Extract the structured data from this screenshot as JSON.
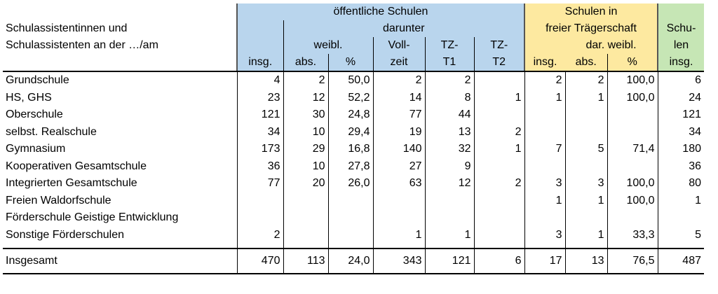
{
  "header": {
    "row_label": [
      "Schulassistentinnen und",
      "Schulassistenten an der …/am"
    ],
    "public": {
      "title": "öffentliche Schulen",
      "sub": "darunter",
      "female": "weibl.",
      "fulltime": "Voll-",
      "tz1": "TZ-",
      "tz2": "TZ-"
    },
    "free": {
      "title": "Schulen in",
      "title2": "freier Trägerschaft",
      "female": "dar. weibl."
    },
    "total": {
      "line1": "Schu-",
      "line2": "len"
    },
    "columns": [
      "insg.",
      "abs.",
      "%",
      "zeit",
      "T1",
      "T2",
      "insg.",
      "abs.",
      "%",
      "insg."
    ]
  },
  "table": {
    "rows": [
      [
        "Grundschule",
        "4",
        "2",
        "50,0",
        "2",
        "2",
        null,
        "2",
        "2",
        "100,0",
        "6"
      ],
      [
        "HS, GHS",
        "23",
        "12",
        "52,2",
        "14",
        "8",
        "1",
        "1",
        "1",
        "100,0",
        "24"
      ],
      [
        "Oberschule",
        "121",
        "30",
        "24,8",
        "77",
        "44",
        null,
        null,
        null,
        null,
        "121"
      ],
      [
        "selbst. Realschule",
        "34",
        "10",
        "29,4",
        "19",
        "13",
        "2",
        null,
        null,
        null,
        "34"
      ],
      [
        "Gymnasium",
        "173",
        "29",
        "16,8",
        "140",
        "32",
        "1",
        "7",
        "5",
        "71,4",
        "180"
      ],
      [
        "Kooperativen Gesamtschule",
        "36",
        "10",
        "27,8",
        "27",
        "9",
        null,
        null,
        null,
        null,
        "36"
      ],
      [
        "Integrierten Gesamtschule",
        "77",
        "20",
        "26,0",
        "63",
        "12",
        "2",
        "3",
        "3",
        "100,0",
        "80"
      ],
      [
        "Freien Waldorfschule",
        null,
        null,
        null,
        null,
        null,
        null,
        "1",
        "1",
        "100,0",
        "1"
      ],
      [
        "Förderschule Geistige Entwicklung",
        null,
        null,
        null,
        null,
        null,
        null,
        null,
        null,
        null,
        null
      ],
      [
        "Sonstige Förderschulen",
        "2",
        null,
        null,
        "1",
        "1",
        null,
        "3",
        "1",
        "33,3",
        "5"
      ]
    ],
    "total": [
      "Insgesamt",
      "470",
      "113",
      "24,0",
      "343",
      "121",
      "6",
      "17",
      "13",
      "76,5",
      "487"
    ]
  }
}
